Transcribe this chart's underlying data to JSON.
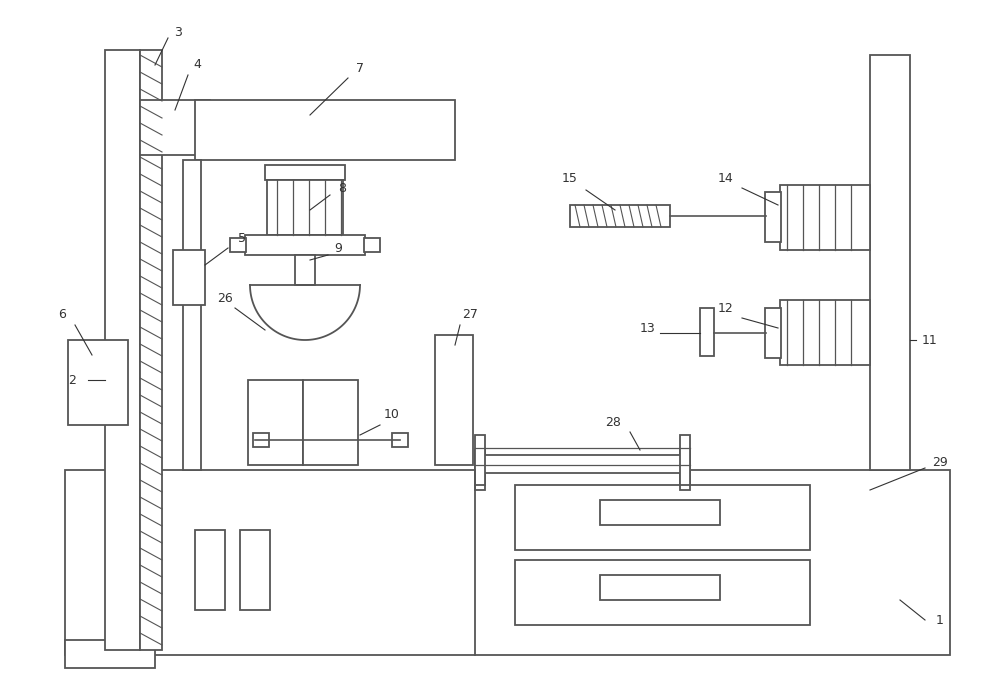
{
  "bg_color": "#ffffff",
  "line_color": "#555555",
  "label_color": "#333333",
  "fig_width": 10.0,
  "fig_height": 6.93,
  "dpi": 100
}
